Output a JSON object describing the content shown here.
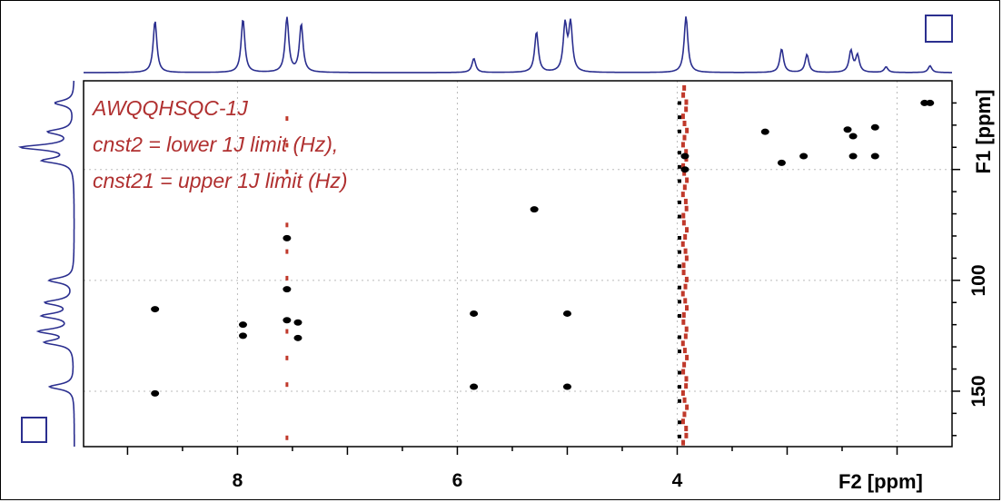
{
  "chart_data": {
    "type": "scatter",
    "plot_kind": "2D NMR HSQC contour plot",
    "annotations": [
      "AWQQHSQC-1J",
      "cnst2 = lower 1J limit (Hz),",
      "cnst21 = upper 1J limit (Hz)"
    ],
    "xlabel": "F2 [ppm]",
    "ylabel": "F1 [ppm]",
    "xlim": [
      9.4,
      1.5
    ],
    "ylim": [
      10,
      175
    ],
    "x_reversed": true,
    "y_reversed": true,
    "xticks": [
      8,
      6,
      4
    ],
    "yticks": [
      100,
      150
    ],
    "grid": "dotted",
    "colors": {
      "peaks": "#000000",
      "noise": "#c0392b",
      "projection": "#2b2f8f",
      "grid": "#bbbbbb"
    },
    "peaks": [
      {
        "f2": 8.75,
        "f1": 113
      },
      {
        "f2": 8.75,
        "f1": 151
      },
      {
        "f2": 7.95,
        "f1": 120
      },
      {
        "f2": 7.95,
        "f1": 125
      },
      {
        "f2": 7.55,
        "f1": 81
      },
      {
        "f2": 7.55,
        "f1": 104
      },
      {
        "f2": 7.55,
        "f1": 118
      },
      {
        "f2": 7.45,
        "f1": 119
      },
      {
        "f2": 7.45,
        "f1": 126
      },
      {
        "f2": 5.85,
        "f1": 115
      },
      {
        "f2": 5.85,
        "f1": 148
      },
      {
        "f2": 5.3,
        "f1": 68
      },
      {
        "f2": 5.0,
        "f1": 115
      },
      {
        "f2": 5.0,
        "f1": 148
      },
      {
        "f2": 3.2,
        "f1": 33
      },
      {
        "f2": 3.05,
        "f1": 47
      },
      {
        "f2": 2.85,
        "f1": 44
      },
      {
        "f2": 2.45,
        "f1": 32
      },
      {
        "f2": 2.4,
        "f1": 35
      },
      {
        "f2": 2.4,
        "f1": 44
      },
      {
        "f2": 2.2,
        "f1": 31
      },
      {
        "f2": 2.2,
        "f1": 44
      },
      {
        "f2": 1.75,
        "f1": 20
      },
      {
        "f2": 1.7,
        "f1": 20
      },
      {
        "f2": 3.93,
        "f1": 44
      },
      {
        "f2": 3.93,
        "f1": 50
      }
    ],
    "projection_peaks_f2": [
      {
        "ppm": 8.75,
        "h": 0.92
      },
      {
        "ppm": 7.95,
        "h": 0.95
      },
      {
        "ppm": 7.55,
        "h": 0.97
      },
      {
        "ppm": 7.42,
        "h": 0.85
      },
      {
        "ppm": 5.85,
        "h": 0.25
      },
      {
        "ppm": 5.28,
        "h": 0.72
      },
      {
        "ppm": 5.02,
        "h": 0.82
      },
      {
        "ppm": 4.97,
        "h": 0.84
      },
      {
        "ppm": 3.92,
        "h": 1.0
      },
      {
        "ppm": 3.05,
        "h": 0.42
      },
      {
        "ppm": 2.82,
        "h": 0.32
      },
      {
        "ppm": 2.42,
        "h": 0.38
      },
      {
        "ppm": 2.36,
        "h": 0.3
      },
      {
        "ppm": 2.1,
        "h": 0.1
      },
      {
        "ppm": 1.7,
        "h": 0.12
      }
    ],
    "projection_peaks_f1": [
      {
        "ppm": 20,
        "h": 0.35
      },
      {
        "ppm": 33,
        "h": 0.45
      },
      {
        "ppm": 40,
        "h": 0.95
      },
      {
        "ppm": 46,
        "h": 0.55
      },
      {
        "ppm": 100,
        "h": 0.45
      },
      {
        "ppm": 110,
        "h": 0.5
      },
      {
        "ppm": 116,
        "h": 0.55
      },
      {
        "ppm": 123,
        "h": 0.6
      },
      {
        "ppm": 128,
        "h": 0.5
      },
      {
        "ppm": 148,
        "h": 0.45
      }
    ]
  }
}
